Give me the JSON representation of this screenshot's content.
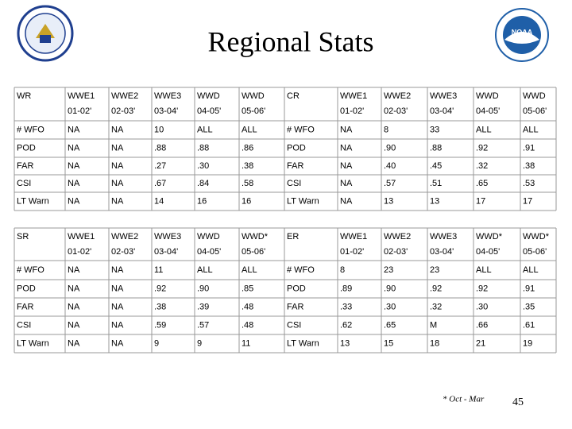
{
  "title": "Regional Stats",
  "tables": [
    {
      "label": "WR",
      "columns": [
        {
          "name": "WWE1",
          "years": "01-02'"
        },
        {
          "name": "WWE2",
          "years": "02-03'"
        },
        {
          "name": "WWE3",
          "years": "03-04'"
        },
        {
          "name": "WWD",
          "years": "04-05'"
        },
        {
          "name": "WWD",
          "years": "05-06'"
        }
      ],
      "rows": [
        [
          "# WFO",
          "NA",
          "NA",
          "10",
          "ALL",
          "ALL"
        ],
        [
          "POD",
          "NA",
          "NA",
          ".88",
          ".88",
          ".86"
        ],
        [
          "FAR",
          "NA",
          "NA",
          ".27",
          ".30",
          ".38"
        ],
        [
          "CSI",
          "NA",
          "NA",
          ".67",
          ".84",
          ".58"
        ],
        [
          "LT Warn",
          "NA",
          "NA",
          "14",
          "16",
          "16"
        ]
      ]
    },
    {
      "label": "CR",
      "columns": [
        {
          "name": "WWE1",
          "years": "01-02'"
        },
        {
          "name": "WWE2",
          "years": "02-03'"
        },
        {
          "name": "WWE3",
          "years": "03-04'"
        },
        {
          "name": "WWD",
          "years": "04-05'"
        },
        {
          "name": "WWD",
          "years": "05-06'"
        }
      ],
      "rows": [
        [
          "# WFO",
          "NA",
          "8",
          "33",
          "ALL",
          "ALL"
        ],
        [
          "POD",
          "NA",
          ".90",
          ".88",
          ".92",
          ".91"
        ],
        [
          "FAR",
          "NA",
          ".40",
          ".45",
          ".32",
          ".38"
        ],
        [
          "CSI",
          "NA",
          ".57",
          ".51",
          ".65",
          ".53"
        ],
        [
          "LT Warn",
          "NA",
          "13",
          "13",
          "17",
          "17"
        ]
      ]
    },
    {
      "label": "SR",
      "columns": [
        {
          "name": "WWE1",
          "years": "01-02'"
        },
        {
          "name": "WWE2",
          "years": "02-03'"
        },
        {
          "name": "WWE3",
          "years": "03-04'"
        },
        {
          "name": "WWD",
          "years": "04-05'"
        },
        {
          "name": "WWD*",
          "years": "05-06'"
        }
      ],
      "rows": [
        [
          "# WFO",
          "NA",
          "NA",
          "11",
          "ALL",
          "ALL"
        ],
        [
          "POD",
          "NA",
          "NA",
          ".92",
          ".90",
          ".85"
        ],
        [
          "FAR",
          "NA",
          "NA",
          ".38",
          ".39",
          ".48"
        ],
        [
          "CSI",
          "NA",
          "NA",
          ".59",
          ".57",
          ".48"
        ],
        [
          "LT Warn",
          "NA",
          "NA",
          "9",
          "9",
          "11"
        ]
      ]
    },
    {
      "label": "ER",
      "columns": [
        {
          "name": "WWE1",
          "years": "01-02'"
        },
        {
          "name": "WWE2",
          "years": "02-03'"
        },
        {
          "name": "WWE3",
          "years": "03-04'"
        },
        {
          "name": "WWD*",
          "years": "04-05'"
        },
        {
          "name": "WWD*",
          "years": "05-06'"
        }
      ],
      "rows": [
        [
          "# WFO",
          "8",
          "23",
          "23",
          "ALL",
          "ALL"
        ],
        [
          "POD",
          ".89",
          ".90",
          ".92",
          ".92",
          ".91"
        ],
        [
          "FAR",
          ".33",
          ".30",
          ".32",
          ".30",
          ".35"
        ],
        [
          "CSI",
          ".62",
          ".65",
          "M",
          ".66",
          ".61"
        ],
        [
          "LT Warn",
          "13",
          "15",
          "18",
          "21",
          "19"
        ]
      ]
    }
  ],
  "footnote": "* Oct - Mar",
  "page_number": "45"
}
